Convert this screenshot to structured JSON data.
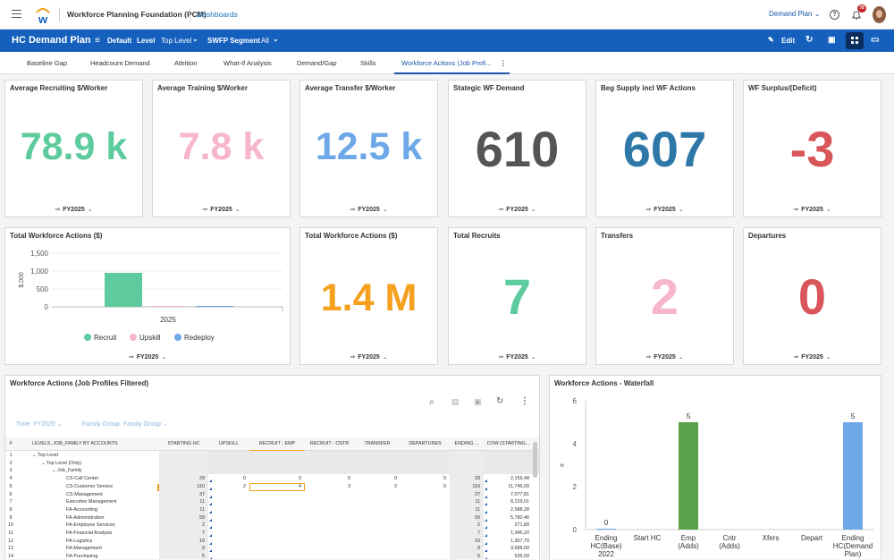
{
  "app": {
    "name": "Workforce Planning Foundation (PCM)",
    "dashboards_link": "Dashboards",
    "user_menu": "Demand Plan",
    "notification_count": "78"
  },
  "toolbar": {
    "title": "HC Demand Plan",
    "default_label": "Default",
    "level_label": "Level",
    "level_value": "Top Level",
    "segment_label": "SWFP Segment",
    "segment_value": "All",
    "edit_label": "Edit"
  },
  "tabs": [
    "Baseline Gap",
    "Headcount Demand",
    "Attrition",
    "What-If Analysis",
    "Demand/Gap",
    "Skills",
    "Workforce Actions (Job Profi..."
  ],
  "filter_fy": "FY2025",
  "kpis_row1": [
    {
      "title": "Average Recruiting $/Worker",
      "value": "78.9 k",
      "color": "#5ecb9f"
    },
    {
      "title": "Average Training $/Worker",
      "value": "7.8 k",
      "color": "#f7b6cb"
    },
    {
      "title": "Average Transfer $/Worker",
      "value": "12.5 k",
      "color": "#6ea8e8"
    },
    {
      "title": "Stategic WF Demand",
      "value": "610",
      "color": "#555555"
    },
    {
      "title": "Beg Supply incl WF Actions",
      "value": "607",
      "color": "#2e78a8"
    },
    {
      "title": "WF Surplus/(Deficit)",
      "value": "-3",
      "color": "#d9575b"
    }
  ],
  "kpis_row2": [
    {
      "title": "Total Workforce Actions ($)",
      "value": "1.4 M",
      "color": "#f5a01e"
    },
    {
      "title": "Total Recruits",
      "value": "7",
      "color": "#5ecb9f"
    },
    {
      "title": "Transfers",
      "value": "2",
      "color": "#f7b6cb"
    },
    {
      "title": "Departures",
      "value": "0",
      "color": "#d9575b"
    }
  ],
  "twa_chart": {
    "title": "Total Workforce Actions ($)",
    "chart_data": {
      "type": "bar",
      "categories": [
        "2025"
      ],
      "series": [
        {
          "name": "Recruit",
          "values": [
            950
          ],
          "color": "#5ecb9f"
        },
        {
          "name": "Upskill",
          "values": [
            10
          ],
          "color": "#f7b6cb"
        },
        {
          "name": "Redeploy",
          "values": [
            20
          ],
          "color": "#6ea8e8"
        }
      ],
      "ylabel": "$,000",
      "ylim": [
        0,
        1500
      ],
      "yticks": [
        "1,500",
        "1,000",
        "500",
        "0"
      ]
    }
  },
  "grid": {
    "title": "Workforce Actions (Job Profiles Filtered)",
    "filter_time_label": "Time",
    "filter_time_value": "FY2025",
    "filter_family_label": "Family Group",
    "filter_family_value": "Family Group",
    "columns": [
      "#",
      "LEVELS, JOB_FAMILY BY ACCOUNTS",
      "STARTING HC",
      "UPSKILL",
      "RECRUIT - EMP",
      "RECRUIT - CNTR",
      "TRANSFER",
      "DEPARTURES",
      "ENDING ...",
      "COW (STARTING..."
    ],
    "rows": [
      [
        "1",
        "Top Level",
        "",
        "",
        "",
        "",
        "",
        "",
        "",
        ""
      ],
      [
        "2",
        "Top Level (Only)",
        "",
        "",
        "",
        "",
        "",
        "",
        "",
        ""
      ],
      [
        "3",
        "Job_Family",
        "",
        "",
        "",
        "",
        "",
        "",
        "",
        ""
      ],
      [
        "4",
        "CS-Call Center",
        "29",
        "0",
        "0",
        "0",
        "0",
        "0",
        "29",
        "2,159,48"
      ],
      [
        "5",
        "CS-Customer Service",
        "110",
        "2",
        "4",
        "3",
        "2",
        "0",
        "119",
        "11,746,09"
      ],
      [
        "6",
        "CS-Management",
        "37",
        "",
        "",
        "",
        "",
        "",
        "37",
        "7,077,81"
      ],
      [
        "7",
        "Executive Management",
        "11",
        "",
        "",
        "",
        "",
        "",
        "11",
        "8,229,01"
      ],
      [
        "8",
        "FA-Accounting",
        "11",
        "",
        "",
        "",
        "",
        "",
        "11",
        "2,588,28"
      ],
      [
        "9",
        "FA-Administration",
        "59",
        "",
        "",
        "",
        "",
        "",
        "59",
        "5,780,46"
      ],
      [
        "10",
        "FA-Employee Services",
        "2",
        "",
        "",
        "",
        "",
        "",
        "2",
        "271,89"
      ],
      [
        "11",
        "FA-Financial Analysis",
        "7",
        "",
        "",
        "",
        "",
        "",
        "7",
        "1,346,20"
      ],
      [
        "12",
        "FA-Logistics",
        "19",
        "",
        "",
        "",
        "",
        "",
        "19",
        "1,367,79"
      ],
      [
        "13",
        "FA-Management",
        "9",
        "",
        "",
        "",
        "",
        "",
        "9",
        "3,689,00"
      ],
      [
        "14",
        "FA-Purchasing",
        "5",
        "",
        "",
        "",
        "",
        "",
        "5",
        "535,09"
      ]
    ]
  },
  "waterfall": {
    "title": "Workforce Actions - Waterfall",
    "chart_data": {
      "type": "bar",
      "categories": [
        "Ending HC(Base) 2022",
        "Start HC",
        "Emp (Adds)",
        "Cntr (Adds)",
        "Xfers",
        "Depart",
        "Ending HC(Demand Plan) 2022"
      ],
      "values": [
        0,
        null,
        5,
        null,
        null,
        null,
        5
      ],
      "colors": [
        "#6ea8e8",
        "",
        "#5ba04a",
        "",
        "",
        "",
        "#6ea8e8"
      ],
      "ylabel": "#",
      "ylim": [
        0,
        6
      ],
      "yticks": [
        "6",
        "4",
        "2",
        "0"
      ]
    }
  }
}
